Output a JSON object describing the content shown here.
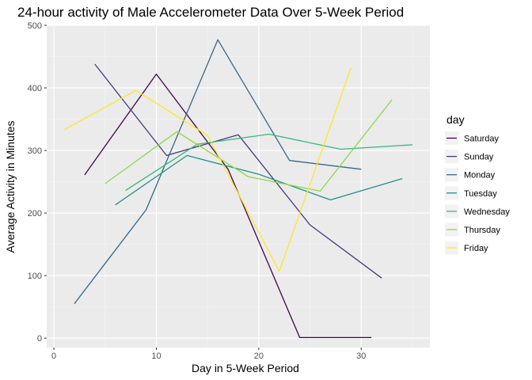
{
  "chart_data": {
    "type": "line",
    "title": "24-hour activity of Male Accelerometer Data Over 5-Week Period",
    "xlabel": "Day in 5-Week Period",
    "ylabel": "Average Activity in Minutes",
    "xlim": [
      -0.7,
      36.7
    ],
    "ylim": [
      -15,
      500
    ],
    "x_ticks": [
      0,
      10,
      20,
      30
    ],
    "y_ticks": [
      0,
      100,
      200,
      300,
      400,
      500
    ],
    "grid": true,
    "legend_title": "day",
    "legend_position": "right",
    "series": [
      {
        "name": "Saturday",
        "color": "#440154",
        "x": [
          3,
          10,
          17,
          24,
          31
        ],
        "values": [
          261,
          422,
          270,
          1,
          1
        ]
      },
      {
        "name": "Sunday",
        "color": "#443A83",
        "x": [
          4,
          11,
          18,
          25,
          32
        ],
        "values": [
          438,
          292,
          325,
          181,
          96
        ]
      },
      {
        "name": "Monday",
        "color": "#31688E",
        "x": [
          2,
          9,
          16,
          23,
          30
        ],
        "values": [
          55,
          205,
          477,
          284,
          270
        ]
      },
      {
        "name": "Tuesday",
        "color": "#21908D",
        "x": [
          6,
          13,
          20,
          27,
          34
        ],
        "values": [
          213,
          292,
          262,
          221,
          255
        ]
      },
      {
        "name": "Wednesday",
        "color": "#35B779",
        "x": [
          7,
          14,
          21,
          28,
          35
        ],
        "values": [
          236,
          310,
          326,
          302,
          309
        ]
      },
      {
        "name": "Thursday",
        "color": "#8FD744",
        "x": [
          5,
          12,
          19,
          26,
          33
        ],
        "values": [
          247,
          330,
          258,
          235,
          381
        ]
      },
      {
        "name": "Friday",
        "color": "#FDE725",
        "x": [
          1,
          8,
          15,
          22,
          29
        ],
        "values": [
          333,
          396,
          324,
          107,
          432
        ]
      }
    ]
  }
}
